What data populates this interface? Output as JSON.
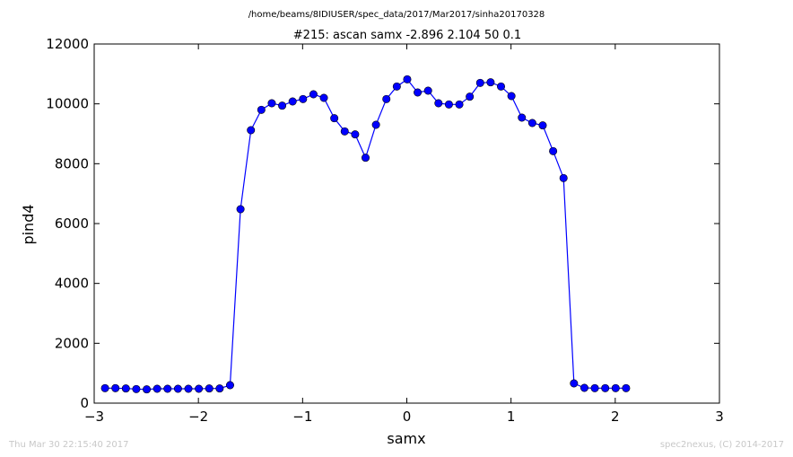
{
  "chart_data": {
    "type": "line",
    "suptitle": "/home/beams/8IDIUSER/spec_data/2017/Mar2017/sinha20170328",
    "title": "#215: ascan  samx -2.896 2.104  50 0.1",
    "xlabel": "samx",
    "ylabel": "pind4",
    "xlim": [
      -3,
      3
    ],
    "ylim": [
      0,
      12000
    ],
    "xticks": [
      -3,
      -2,
      -1,
      0,
      1,
      2,
      3
    ],
    "xtick_labels": [
      "−3",
      "−2",
      "−1",
      "0",
      "1",
      "2",
      "3"
    ],
    "yticks": [
      0,
      2000,
      4000,
      6000,
      8000,
      10000,
      12000
    ],
    "ytick_labels": [
      "0",
      "2000",
      "4000",
      "6000",
      "8000",
      "10000",
      "12000"
    ],
    "grid": false,
    "line_color": "#0000ff",
    "marker": "circle",
    "x_start": -2.896,
    "x_step": 0.1,
    "values": [
      500,
      500,
      490,
      470,
      460,
      480,
      480,
      480,
      480,
      480,
      490,
      490,
      600,
      6480,
      9120,
      9800,
      10020,
      9940,
      10080,
      10160,
      10320,
      10200,
      9520,
      9080,
      8980,
      8200,
      9300,
      10160,
      10580,
      10820,
      10380,
      10440,
      10020,
      9980,
      9980,
      10240,
      10700,
      10720,
      10580,
      10260,
      9540,
      9360,
      9280,
      8420,
      7520,
      660,
      510,
      500,
      500,
      500,
      500
    ]
  },
  "footer": {
    "left": "Thu Mar 30 22:15:40 2017",
    "right": "spec2nexus, (C) 2014-2017"
  }
}
